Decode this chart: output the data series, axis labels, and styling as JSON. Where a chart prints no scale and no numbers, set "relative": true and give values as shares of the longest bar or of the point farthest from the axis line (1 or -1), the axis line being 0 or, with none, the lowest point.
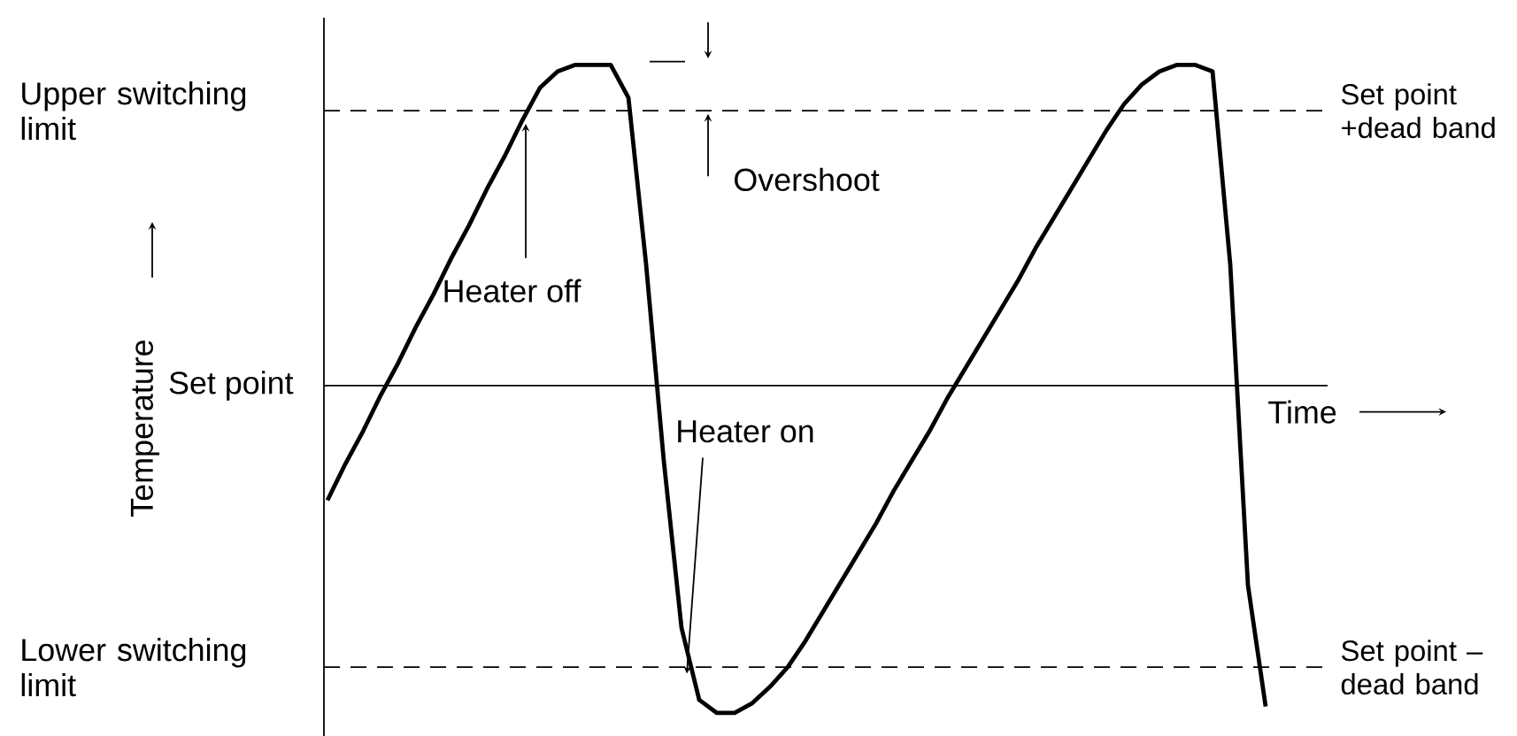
{
  "chart_data": {
    "type": "line",
    "relative": true,
    "xlabel": "Time",
    "line_style": "solid",
    "categories": [
      null,
      null,
      null,
      null,
      null,
      null,
      null,
      null,
      null,
      null,
      null,
      null,
      null,
      null,
      null,
      null,
      null,
      null,
      null,
      null,
      null,
      null,
      null,
      null,
      null,
      null,
      null,
      null,
      null,
      null,
      null,
      null,
      null,
      null,
      null,
      null,
      null,
      null,
      null,
      null,
      null,
      null,
      null,
      null,
      null,
      null,
      null,
      null,
      null,
      null,
      null,
      null,
      null,
      null
    ],
    "series": [
      {
        "color": "#000000",
        "values": [
          -0.35,
          -0.24,
          -0.14,
          -0.03,
          0.07,
          0.18,
          0.28,
          0.39,
          0.49,
          0.6,
          0.7,
          0.81,
          0.91,
          0.96,
          0.98,
          0.98,
          0.98,
          0.88,
          0.37,
          -0.23,
          -0.74,
          -0.96,
          -1.0,
          -1.0,
          -0.97,
          -0.92,
          -0.86,
          -0.78,
          -0.69,
          -0.6,
          -0.51,
          -0.42,
          -0.32,
          -0.23,
          -0.14,
          -0.04,
          0.05,
          0.14,
          0.23,
          0.32,
          0.42,
          0.51,
          0.6,
          0.69,
          0.78,
          0.86,
          0.92,
          0.96,
          0.98,
          0.98,
          0.96,
          0.37,
          -0.61,
          -0.98
        ]
      }
    ],
    "ref_lines": [
      {
        "axis": "y",
        "value": 0.84,
        "label": "Set point +dead band",
        "line_style": "dashed"
      },
      {
        "axis": "y",
        "value": 0,
        "label": "Set point",
        "line_style": "solid"
      },
      {
        "axis": "y",
        "value": -0.86,
        "label": "Set point –dead band",
        "line_style": "dashed"
      }
    ],
    "annotations": [
      "Upper switching limit",
      "Lower switching limit",
      "Heater off",
      "Heater on",
      "Overshoot",
      "Temperature"
    ]
  }
}
